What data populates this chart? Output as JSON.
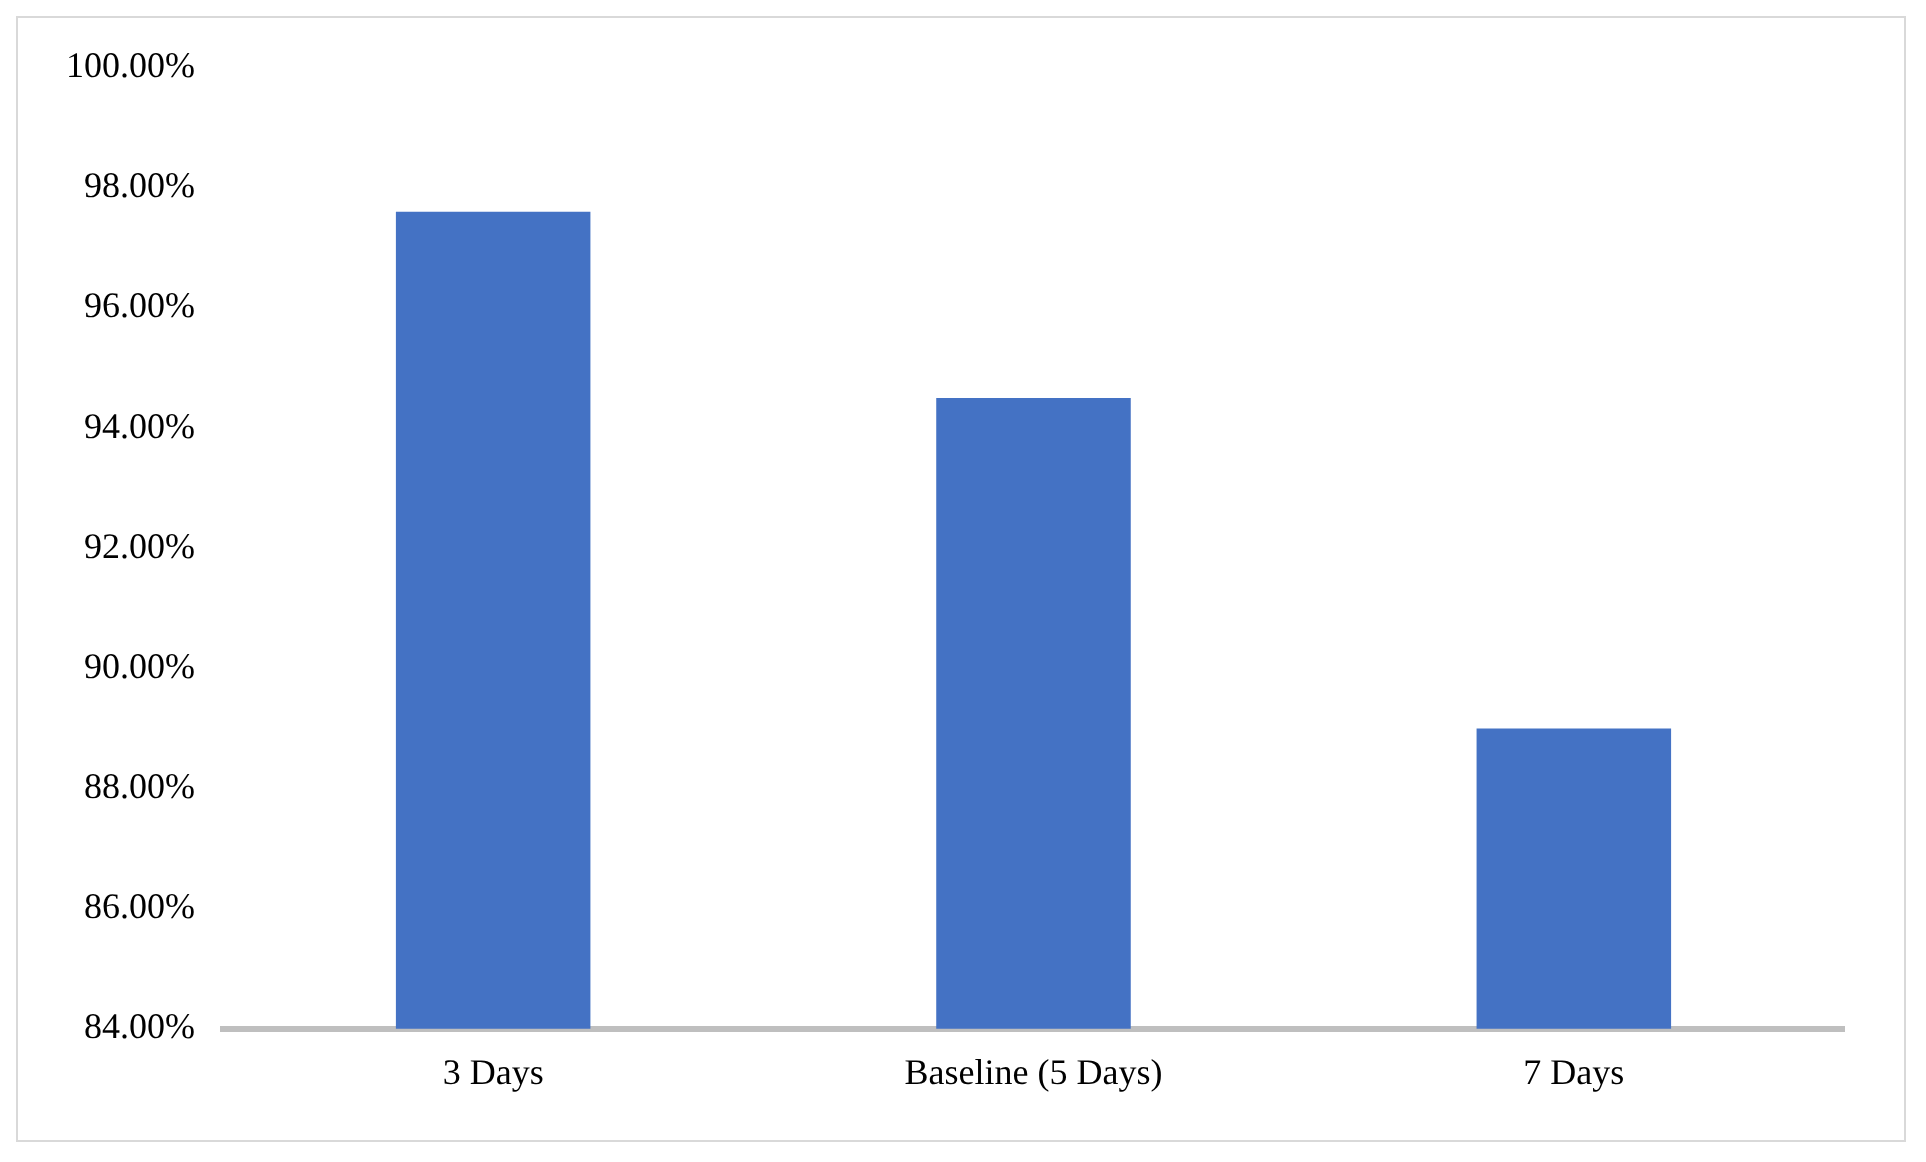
{
  "chart_data": {
    "type": "bar",
    "categories": [
      "3 Days",
      "Baseline (5 Days)",
      "7 Days"
    ],
    "values": [
      97.6,
      94.5,
      89.0
    ],
    "color": "#4472c4",
    "ylim": [
      84,
      100
    ],
    "yticks": [
      {
        "value": 84,
        "label": "84.00%"
      },
      {
        "value": 86,
        "label": "86.00%"
      },
      {
        "value": 88,
        "label": "88.00%"
      },
      {
        "value": 90,
        "label": "90.00%"
      },
      {
        "value": 92,
        "label": "92.00%"
      },
      {
        "value": 94,
        "label": "94.00%"
      },
      {
        "value": 96,
        "label": "96.00%"
      },
      {
        "value": 98,
        "label": "98.00%"
      },
      {
        "value": 100,
        "label": "100.00%"
      }
    ],
    "grid": false,
    "legend": false
  }
}
